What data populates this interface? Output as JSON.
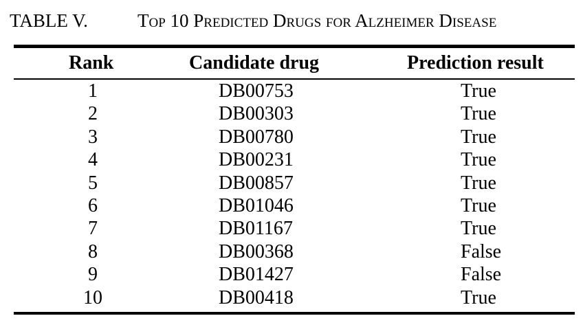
{
  "caption": {
    "label": "TABLE V.",
    "title": "Top 10 Predicted Drugs for Alzheimer Disease"
  },
  "table": {
    "headers": [
      "Rank",
      "Candidate drug",
      "Prediction result"
    ],
    "rows": [
      {
        "rank": "1",
        "drug": "DB00753",
        "result": "True"
      },
      {
        "rank": "2",
        "drug": "DB00303",
        "result": "True"
      },
      {
        "rank": "3",
        "drug": "DB00780",
        "result": "True"
      },
      {
        "rank": "4",
        "drug": "DB00231",
        "result": "True"
      },
      {
        "rank": "5",
        "drug": "DB00857",
        "result": "True"
      },
      {
        "rank": "6",
        "drug": "DB01046",
        "result": "True"
      },
      {
        "rank": "7",
        "drug": "DB01167",
        "result": "True"
      },
      {
        "rank": "8",
        "drug": "DB00368",
        "result": "False"
      },
      {
        "rank": "9",
        "drug": "DB01427",
        "result": "False"
      },
      {
        "rank": "10",
        "drug": "DB00418",
        "result": "True"
      }
    ]
  }
}
